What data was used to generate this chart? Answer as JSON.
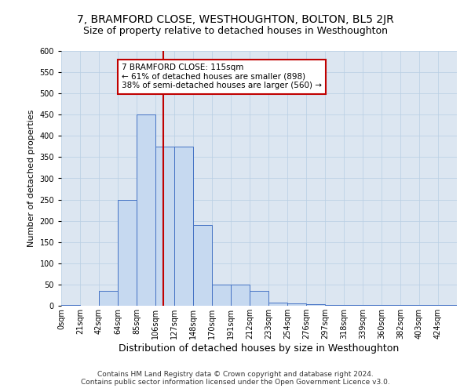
{
  "title": "7, BRAMFORD CLOSE, WESTHOUGHTON, BOLTON, BL5 2JR",
  "subtitle": "Size of property relative to detached houses in Westhoughton",
  "xlabel": "Distribution of detached houses by size in Westhoughton",
  "ylabel": "Number of detached properties",
  "bin_labels": [
    "0sqm",
    "21sqm",
    "42sqm",
    "64sqm",
    "85sqm",
    "106sqm",
    "127sqm",
    "148sqm",
    "170sqm",
    "191sqm",
    "212sqm",
    "233sqm",
    "254sqm",
    "276sqm",
    "297sqm",
    "318sqm",
    "339sqm",
    "360sqm",
    "382sqm",
    "403sqm",
    "424sqm"
  ],
  "bin_starts": [
    0,
    21,
    42,
    64,
    85,
    106,
    127,
    148,
    170,
    191,
    212,
    233,
    254,
    276,
    297,
    318,
    339,
    360,
    382,
    403,
    424
  ],
  "bar_heights": [
    2,
    0,
    35,
    250,
    450,
    375,
    375,
    190,
    50,
    50,
    35,
    8,
    5,
    3,
    2,
    2,
    1,
    1,
    2,
    1,
    2
  ],
  "bar_color": "#c6d9f0",
  "bar_edge_color": "#4472c4",
  "grid_color": "#b8cfe4",
  "bg_color": "#dce6f1",
  "annotation_text": "7 BRAMFORD CLOSE: 115sqm\n← 61% of detached houses are smaller (898)\n38% of semi-detached houses are larger (560) →",
  "annotation_box_facecolor": "white",
  "annotation_box_edgecolor": "#c00000",
  "vline_sqm": 115,
  "vline_color": "#c00000",
  "ylim": [
    0,
    600
  ],
  "yticks": [
    0,
    50,
    100,
    150,
    200,
    250,
    300,
    350,
    400,
    450,
    500,
    550,
    600
  ],
  "footer_line1": "Contains HM Land Registry data © Crown copyright and database right 2024.",
  "footer_line2": "Contains public sector information licensed under the Open Government Licence v3.0.",
  "title_fontsize": 10,
  "subtitle_fontsize": 9,
  "xlabel_fontsize": 9,
  "ylabel_fontsize": 8,
  "tick_fontsize": 7,
  "footer_fontsize": 6.5,
  "annot_fontsize": 7.5
}
